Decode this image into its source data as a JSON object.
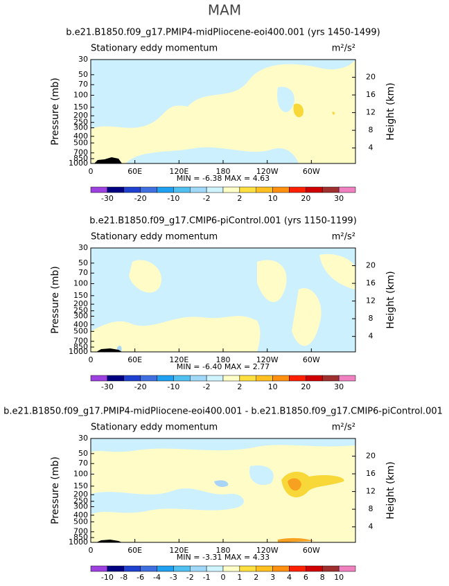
{
  "title": "MAM",
  "chart_data": [
    {
      "type": "contour",
      "title": "b.e21.B1850.f09_g17.PMIP4-midPliocene-eoi400.001 (yrs 1450-1499)",
      "annotation": "Stationary eddy momentum",
      "units": "m²/s²",
      "stats": "MIN =   -6.38   MAX =    4.63",
      "xlim": [
        0,
        360
      ],
      "xticks": [
        0,
        {
          "value": 60,
          "label": "60E"
        },
        {
          "value": 120,
          "label": "120E"
        },
        180,
        {
          "value": 240,
          "label": "120W"
        },
        {
          "value": 300,
          "label": "60W"
        }
      ],
      "ylim": [
        1000,
        30
      ],
      "ylog": true,
      "yticks": [
        30,
        50,
        70,
        100,
        150,
        200,
        250,
        300,
        400,
        500,
        700,
        850,
        1000
      ],
      "ylabel": "Pressure (mb)",
      "y2lim": [
        0.5,
        24
      ],
      "y2ticks": [
        4,
        8,
        12,
        16,
        20
      ],
      "y2label": "Height (km)",
      "colorbar": {
        "colors": [
          "#9c40e0",
          "#000080",
          "#2040d0",
          "#4070e0",
          "#20a0f0",
          "#50c0f0",
          "#a0d8f8",
          "#d0f4ff",
          "#ffffc8",
          "#ffe040",
          "#ffc020",
          "#ff9010",
          "#ff2000",
          "#d00000",
          "#a03030",
          "#f080c0"
        ],
        "labels": [
          -30,
          -20,
          -10,
          -2,
          2,
          10,
          20,
          30
        ]
      }
    },
    {
      "type": "contour",
      "title": "b.e21.B1850.f09_g17.CMIP6-piControl.001 (yrs 1150-1199)",
      "annotation": "Stationary eddy momentum",
      "units": "m²/s²",
      "stats": "MIN =   -6.40   MAX =    2.77",
      "xlim": [
        0,
        360
      ],
      "xticks": [
        0,
        {
          "value": 60,
          "label": "60E"
        },
        {
          "value": 120,
          "label": "120E"
        },
        180,
        {
          "value": 240,
          "label": "120W"
        },
        {
          "value": 300,
          "label": "60W"
        }
      ],
      "ylim": [
        1000,
        30
      ],
      "ylog": true,
      "yticks": [
        30,
        50,
        70,
        100,
        150,
        200,
        250,
        300,
        400,
        500,
        700,
        850,
        1000
      ],
      "ylabel": "Pressure (mb)",
      "y2lim": [
        0.5,
        24
      ],
      "y2ticks": [
        4,
        8,
        12,
        16,
        20
      ],
      "y2label": "Height (km)",
      "colorbar": {
        "colors": [
          "#9c40e0",
          "#000080",
          "#2040d0",
          "#4070e0",
          "#20a0f0",
          "#50c0f0",
          "#a0d8f8",
          "#d0f4ff",
          "#ffffc8",
          "#ffe040",
          "#ffc020",
          "#ff9010",
          "#ff2000",
          "#d00000",
          "#a03030",
          "#f080c0"
        ],
        "labels": [
          -30,
          -20,
          -10,
          -2,
          2,
          10,
          20,
          30
        ]
      }
    },
    {
      "type": "contour",
      "title": "b.e21.B1850.f09_g17.PMIP4-midPliocene-eoi400.001 - b.e21.B1850.f09_g17.CMIP6-piControl.001",
      "annotation": "Stationary eddy momentum",
      "units": "m²/s²",
      "stats": "MIN =   -3.31   MAX =    4.33",
      "xlim": [
        0,
        360
      ],
      "xticks": [
        0,
        {
          "value": 60,
          "label": "60E"
        },
        {
          "value": 120,
          "label": "120E"
        },
        180,
        {
          "value": 240,
          "label": "120W"
        },
        {
          "value": 300,
          "label": "60W"
        }
      ],
      "ylim": [
        1000,
        30
      ],
      "ylog": true,
      "yticks": [
        30,
        50,
        70,
        100,
        150,
        200,
        250,
        300,
        400,
        500,
        700,
        850,
        1000
      ],
      "ylabel": "Pressure (mb)",
      "y2lim": [
        0.5,
        24
      ],
      "y2ticks": [
        4,
        8,
        12,
        16,
        20
      ],
      "y2label": "Height (km)",
      "colorbar": {
        "colors": [
          "#9c40e0",
          "#000080",
          "#2040d0",
          "#4070e0",
          "#20a0f0",
          "#50c0f0",
          "#a0d8f8",
          "#d0f4ff",
          "#ffffc8",
          "#ffe040",
          "#ffc020",
          "#ff9010",
          "#ff2000",
          "#d00000",
          "#a03030",
          "#f080c0"
        ],
        "labels": [
          -10,
          -8,
          -6,
          -4,
          -3,
          -2,
          -1,
          0,
          1,
          2,
          3,
          4,
          6,
          8,
          10
        ]
      }
    }
  ]
}
